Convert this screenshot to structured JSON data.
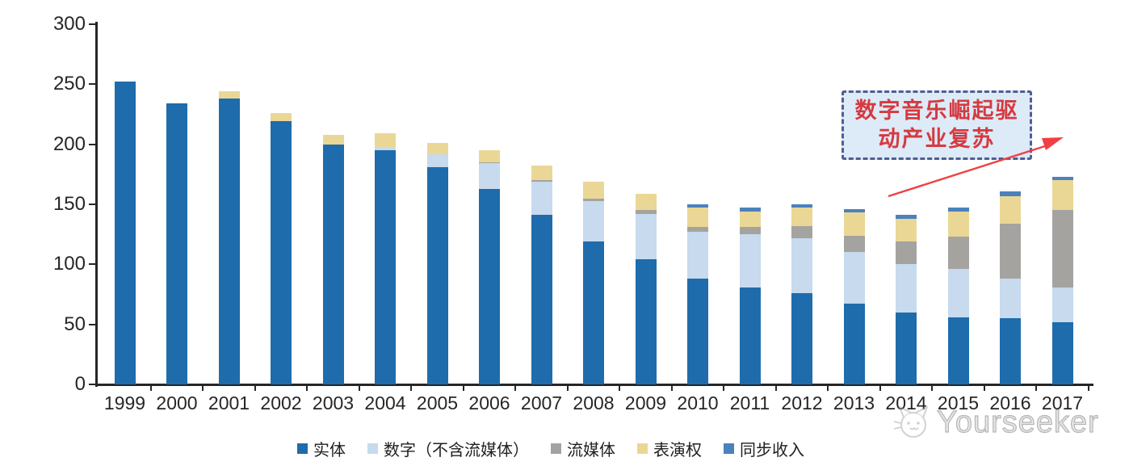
{
  "chart_data": {
    "type": "bar",
    "stacked": true,
    "title": "",
    "xlabel": "",
    "ylabel": "",
    "ylim": [
      0,
      300
    ],
    "yticks": [
      0,
      50,
      100,
      150,
      200,
      250,
      300
    ],
    "grid": false,
    "legend_position": "bottom",
    "categories": [
      "1999",
      "2000",
      "2001",
      "2002",
      "2003",
      "2004",
      "2005",
      "2006",
      "2007",
      "2008",
      "2009",
      "2010",
      "2011",
      "2012",
      "2013",
      "2014",
      "2015",
      "2016",
      "2017"
    ],
    "series": [
      {
        "name": "实体",
        "key": "physical",
        "color": "#1E6CAC",
        "values": [
          252,
          234,
          238,
          219,
          200,
          195,
          181,
          163,
          141,
          119,
          104,
          88,
          81,
          76,
          67,
          60,
          56,
          55,
          52
        ]
      },
      {
        "name": "数字（不含流媒体）",
        "key": "digital-excl-streaming",
        "color": "#C7DAEE",
        "values": [
          0,
          0,
          0,
          0,
          0,
          3,
          11,
          21,
          28,
          34,
          38,
          39,
          44,
          46,
          43,
          40,
          40,
          33,
          29
        ]
      },
      {
        "name": "流媒体",
        "key": "streaming",
        "color": "#A5A3A0",
        "values": [
          0,
          0,
          0,
          0,
          0,
          0,
          0,
          1,
          1,
          2,
          3,
          4,
          6,
          10,
          14,
          19,
          27,
          46,
          64
        ]
      },
      {
        "name": "表演权",
        "key": "performance-rights",
        "color": "#EBD795",
        "values": [
          0,
          0,
          6,
          7,
          8,
          11,
          9,
          10,
          12,
          14,
          14,
          16,
          13,
          15,
          19,
          19,
          21,
          23,
          25
        ]
      },
      {
        "name": "同步收入",
        "key": "sync-revenue",
        "color": "#4C81BC",
        "values": [
          0,
          0,
          0,
          0,
          0,
          0,
          0,
          0,
          0,
          0,
          0,
          3,
          3,
          3,
          3,
          3,
          3,
          4,
          3
        ]
      }
    ]
  },
  "annotation": {
    "line1": "数字音乐崛起驱",
    "line2": "动产业复苏",
    "text_color": "#d53a3f",
    "box_fill": "#ddeaf8",
    "border_color": "#4d5f92",
    "arrow_color": "#f04043"
  },
  "watermark": {
    "text": "Yourseeker"
  },
  "colors": {
    "axis": "#262626",
    "background": "#ffffff"
  }
}
